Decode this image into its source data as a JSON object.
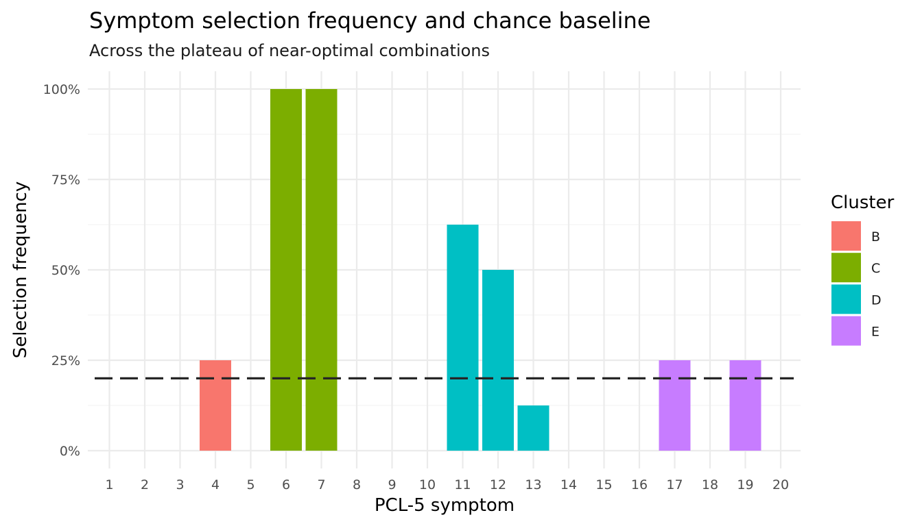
{
  "chart_data": {
    "type": "bar",
    "title": "Symptom selection frequency and chance baseline",
    "subtitle": "Across the plateau of near-optimal combinations",
    "xlabel": "PCL-5 symptom",
    "ylabel": "Selection frequency",
    "categories": [
      "1",
      "2",
      "3",
      "4",
      "5",
      "6",
      "7",
      "8",
      "9",
      "10",
      "11",
      "12",
      "13",
      "14",
      "15",
      "16",
      "17",
      "18",
      "19",
      "20"
    ],
    "values": [
      0,
      0,
      0,
      0.25,
      0,
      1.0,
      1.0,
      0,
      0,
      0,
      0.625,
      0.5,
      0.125,
      0,
      0,
      0,
      0.25,
      0,
      0.25,
      0
    ],
    "clusters": [
      "",
      "",
      "",
      "B",
      "",
      "C",
      "C",
      "",
      "",
      "",
      "D",
      "D",
      "D",
      "",
      "",
      "",
      "E",
      "",
      "E",
      ""
    ],
    "ylim": [
      0,
      1
    ],
    "yticks": [
      0,
      0.25,
      0.5,
      0.75,
      1.0
    ],
    "ytick_labels": [
      "0%",
      "25%",
      "50%",
      "75%",
      "100%"
    ],
    "baseline": {
      "value": 0.2,
      "style": "dashed",
      "color": "#262626"
    },
    "grid": true,
    "legend": {
      "title": "Cluster",
      "placement": "right",
      "entries": [
        {
          "label": "B",
          "color": "#F8766D"
        },
        {
          "label": "C",
          "color": "#7CAE00"
        },
        {
          "label": "D",
          "color": "#00BFC4"
        },
        {
          "label": "E",
          "color": "#C77CFF"
        }
      ]
    }
  }
}
